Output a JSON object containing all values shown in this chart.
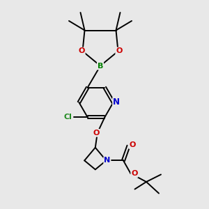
{
  "bg_color": "#e8e8e8",
  "atom_colors": {
    "C": "#000000",
    "N": "#0000cc",
    "O": "#cc0000",
    "B": "#008000",
    "Cl": "#228b22"
  },
  "bond_color": "#000000",
  "bond_width": 1.4,
  "figsize": [
    3.0,
    3.0
  ],
  "dpi": 100
}
